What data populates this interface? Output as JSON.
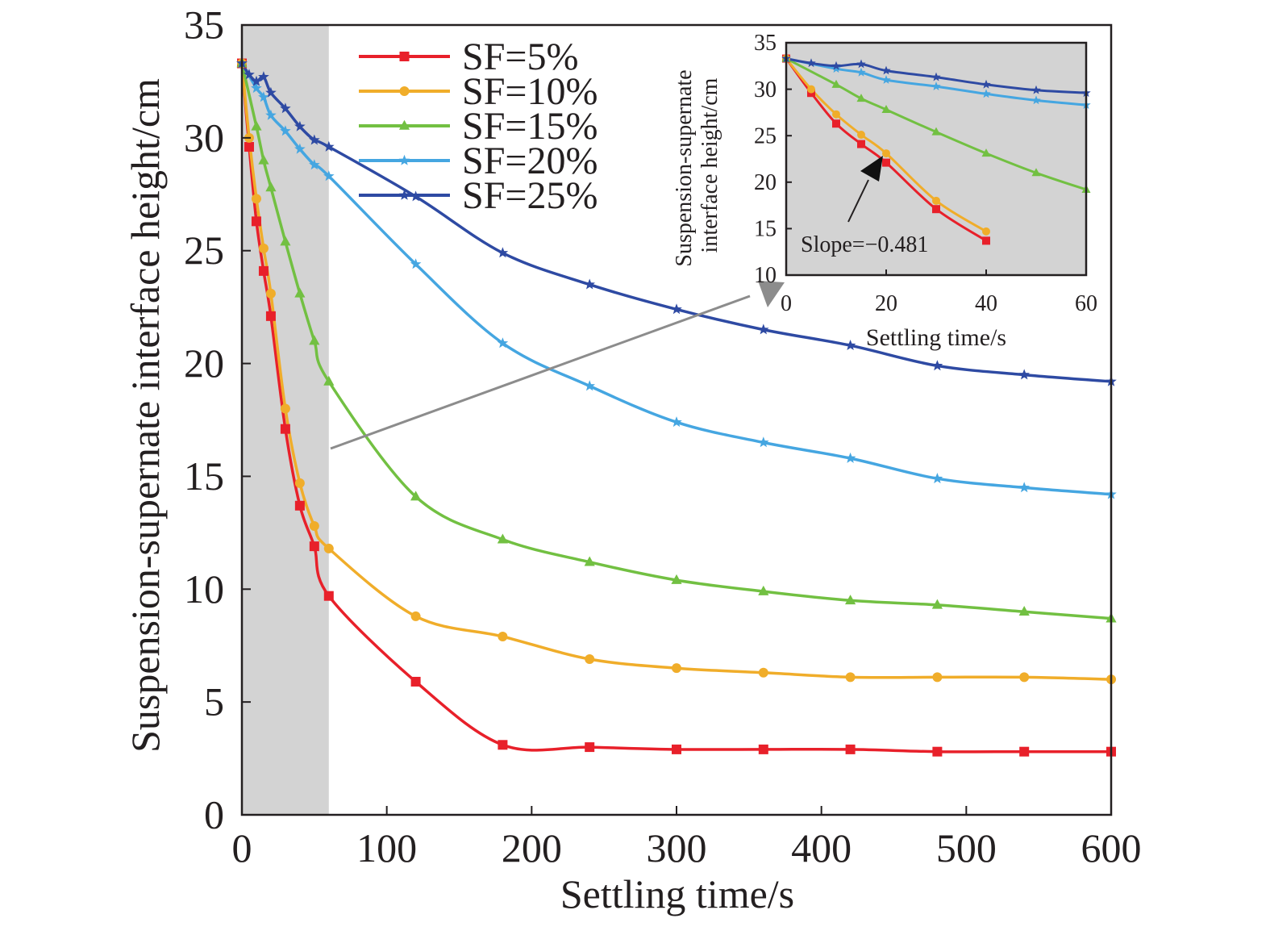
{
  "chart_data": [
    {
      "type": "line",
      "xlabel": "Settling time/s",
      "ylabel": "Suspension-supernate interface height/cm",
      "xlim": [
        0,
        600
      ],
      "ylim": [
        0,
        35
      ],
      "xticks": [
        "0",
        "100",
        "200",
        "300",
        "400",
        "500",
        "600"
      ],
      "yticks": [
        "0",
        "5",
        "10",
        "15",
        "20",
        "25",
        "30",
        "35"
      ],
      "grid": false,
      "legend_position": "top-left",
      "highlight_region": {
        "x_start": 0,
        "x_end": 60,
        "color": "#d3d3d3"
      },
      "series": [
        {
          "name": "SF=5%",
          "color": "#e8202a",
          "marker": "square",
          "x": [
            0,
            5,
            10,
            15,
            20,
            30,
            40,
            50,
            60,
            120,
            180,
            240,
            300,
            360,
            420,
            480,
            540,
            600
          ],
          "y": [
            33.3,
            29.6,
            26.3,
            24.1,
            22.1,
            17.1,
            13.7,
            11.9,
            9.7,
            5.9,
            3.1,
            3.0,
            2.9,
            2.9,
            2.9,
            2.8,
            2.8,
            2.8
          ]
        },
        {
          "name": "SF=10%",
          "color": "#f0ad2a",
          "marker": "circle",
          "x": [
            0,
            5,
            10,
            15,
            20,
            30,
            40,
            50,
            60,
            120,
            180,
            240,
            300,
            360,
            420,
            480,
            540,
            600
          ],
          "y": [
            33.3,
            30.0,
            27.3,
            25.1,
            23.1,
            18.0,
            14.7,
            12.8,
            11.8,
            8.8,
            7.9,
            6.9,
            6.5,
            6.3,
            6.1,
            6.1,
            6.1,
            6.0
          ]
        },
        {
          "name": "SF=15%",
          "color": "#72c042",
          "marker": "triangle",
          "x": [
            0,
            10,
            15,
            20,
            30,
            40,
            50,
            60,
            120,
            180,
            240,
            300,
            360,
            420,
            480,
            540,
            600
          ],
          "y": [
            33.3,
            30.5,
            29.0,
            27.8,
            25.4,
            23.1,
            21.0,
            19.2,
            14.1,
            12.2,
            11.2,
            10.4,
            9.9,
            9.5,
            9.3,
            9.0,
            8.7
          ]
        },
        {
          "name": "SF=20%",
          "color": "#45a6e1",
          "marker": "star",
          "x": [
            0,
            10,
            15,
            20,
            30,
            40,
            50,
            60,
            120,
            180,
            240,
            300,
            360,
            420,
            480,
            540,
            600
          ],
          "y": [
            33.3,
            32.2,
            31.8,
            31.0,
            30.3,
            29.5,
            28.8,
            28.3,
            24.4,
            20.9,
            19.0,
            17.4,
            16.5,
            15.8,
            14.9,
            14.5,
            14.2
          ]
        },
        {
          "name": "SF=25%",
          "color": "#2e4aa3",
          "marker": "star",
          "x": [
            0,
            5,
            10,
            15,
            20,
            30,
            40,
            50,
            60,
            120,
            180,
            240,
            300,
            360,
            420,
            480,
            540,
            600
          ],
          "y": [
            33.3,
            32.8,
            32.5,
            32.7,
            32.0,
            31.3,
            30.5,
            29.9,
            29.6,
            27.4,
            24.9,
            23.5,
            22.4,
            21.5,
            20.8,
            19.9,
            19.5,
            19.2
          ]
        }
      ]
    },
    {
      "type": "line",
      "xlabel": "Settling time/s",
      "ylabel": "Suspension-supernate interface height/cm",
      "xlim": [
        0,
        60
      ],
      "ylim": [
        10,
        35
      ],
      "xticks": [
        "0",
        "20",
        "40",
        "60"
      ],
      "yticks": [
        "10",
        "15",
        "20",
        "25",
        "30",
        "35"
      ],
      "background": "#d3d3d3",
      "annotation": "Slope=−0.481",
      "series": [
        {
          "name": "SF=5%",
          "color": "#e8202a",
          "marker": "square",
          "x": [
            0,
            5,
            10,
            15,
            20,
            30,
            40
          ],
          "y": [
            33.3,
            29.6,
            26.3,
            24.1,
            22.1,
            17.1,
            13.7
          ]
        },
        {
          "name": "SF=10%",
          "color": "#f0ad2a",
          "marker": "circle",
          "x": [
            0,
            5,
            10,
            15,
            20,
            30,
            40
          ],
          "y": [
            33.3,
            30.0,
            27.3,
            25.1,
            23.1,
            18.0,
            14.7
          ]
        },
        {
          "name": "SF=15%",
          "color": "#72c042",
          "marker": "triangle",
          "x": [
            0,
            10,
            15,
            20,
            30,
            40,
            50,
            60
          ],
          "y": [
            33.3,
            30.5,
            29.0,
            27.8,
            25.4,
            23.1,
            21.0,
            19.2
          ]
        },
        {
          "name": "SF=20%",
          "color": "#45a6e1",
          "marker": "star",
          "x": [
            0,
            10,
            15,
            20,
            30,
            40,
            50,
            60
          ],
          "y": [
            33.3,
            32.2,
            31.8,
            31.0,
            30.3,
            29.5,
            28.8,
            28.3
          ]
        },
        {
          "name": "SF=25%",
          "color": "#2e4aa3",
          "marker": "star",
          "x": [
            0,
            5,
            10,
            15,
            20,
            30,
            40,
            50,
            60
          ],
          "y": [
            33.3,
            32.8,
            32.5,
            32.7,
            32.0,
            31.3,
            30.5,
            29.9,
            29.6
          ]
        }
      ]
    }
  ]
}
